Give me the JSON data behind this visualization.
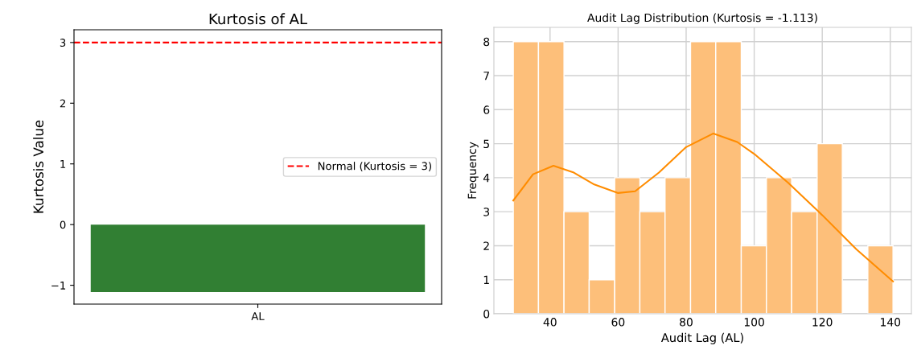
{
  "chart_data": [
    {
      "type": "bar",
      "title": "Kurtosis of AL",
      "ylabel": "Kurtosis Value",
      "categories": [
        "AL"
      ],
      "values": [
        -1.11
      ],
      "color": "#317f33",
      "ylim": [
        -1.31,
        3.21
      ],
      "yticks": [
        {
          "value": -1,
          "label": "−1"
        },
        0,
        1,
        2,
        3
      ],
      "ref_lines": [
        {
          "axis": "y",
          "value": 3,
          "label": "Normal (Kurtosis = 3)",
          "color": "#ff0000",
          "line_style": "dashed"
        }
      ],
      "legend": "right",
      "grid": false
    },
    {
      "type": "histogram",
      "title": "Audit Lag Distribution (Kurtosis = -1.113)",
      "xlabel": "Audit Lag (AL)",
      "ylabel": "Frequency",
      "color": "#fdbf7a",
      "bins": [
        29.2,
        36.6,
        44.1,
        51.5,
        59.0,
        66.4,
        73.8,
        81.3,
        88.7,
        96.2,
        103.6,
        111.0,
        118.5,
        125.9,
        133.4,
        140.8
      ],
      "values": [
        8,
        8,
        3,
        1,
        4,
        3,
        4,
        8,
        8,
        2,
        4,
        3,
        5,
        0,
        2
      ],
      "series": [
        {
          "type": "line",
          "color": "#ff8c00",
          "x": [
            29.2,
            35,
            41,
            47,
            53,
            60,
            65,
            72,
            80,
            88,
            95,
            100,
            110,
            120,
            130,
            140.8
          ],
          "values": [
            3.33,
            4.1,
            4.35,
            4.15,
            3.8,
            3.55,
            3.6,
            4.15,
            4.9,
            5.3,
            5.05,
            4.7,
            3.85,
            2.9,
            1.9,
            0.95
          ]
        }
      ],
      "xlim": [
        23.5,
        146.2
      ],
      "xticks": [
        40,
        60,
        80,
        100,
        120,
        140
      ],
      "ylim": [
        0,
        8.42
      ],
      "yticks": [
        0,
        1,
        2,
        3,
        4,
        5,
        6,
        7,
        8
      ],
      "grid": true
    }
  ]
}
